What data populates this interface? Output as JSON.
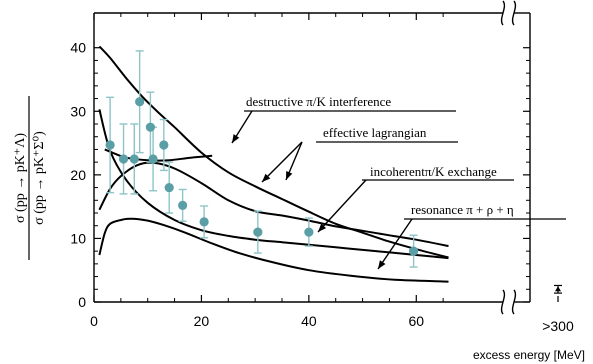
{
  "chart_data": {
    "type": "line",
    "xlabel": "excess energy  [MeV]",
    "ylabel_numerator": "σ (pp → pK⁺Λ)",
    "ylabel_denominator": "σ (pp → pK⁺Σ⁰)",
    "xlim": [
      0,
      70
    ],
    "ylim": [
      0,
      42
    ],
    "x_ticks": [
      "0",
      "20",
      "40",
      "60"
    ],
    "y_ticks": [
      "0",
      "10",
      "20",
      "30",
      "40"
    ],
    "x_break_label": ">300",
    "grid": false,
    "data_points": [
      {
        "x": 3.0,
        "y": 24.7,
        "yerr": 7.5
      },
      {
        "x": 5.5,
        "y": 22.5,
        "yerr": 5.5
      },
      {
        "x": 7.5,
        "y": 22.5,
        "yerr": 5.5
      },
      {
        "x": 8.5,
        "y": 31.5,
        "yerr": 8.0
      },
      {
        "x": 10.5,
        "y": 27.5,
        "yerr": 5.5
      },
      {
        "x": 11.0,
        "y": 22.5,
        "yerr": 5.0
      },
      {
        "x": 13.0,
        "y": 24.7,
        "yerr": 4.0
      },
      {
        "x": 14.0,
        "y": 18.0,
        "yerr": 4.0
      },
      {
        "x": 16.5,
        "y": 15.2,
        "yerr": 2.5
      },
      {
        "x": 20.5,
        "y": 12.6,
        "yerr": 2.5
      },
      {
        "x": 30.5,
        "y": 11.0,
        "yerr": 3.3
      },
      {
        "x": 40.0,
        "y": 11.0,
        "yerr": 2.2
      },
      {
        "x": 59.5,
        "y": 8.0,
        "yerr": 2.5
      }
    ],
    "break_point": {
      "y": 2.0,
      "yerr": 0.6
    },
    "curves": [
      {
        "x": [
          1,
          3,
          6,
          9,
          12,
          15,
          20,
          25,
          30,
          35,
          40,
          45,
          50,
          55,
          60,
          66
        ],
        "y": [
          40.2,
          38.4,
          35.2,
          32.3,
          29.8,
          27.5,
          23.5,
          20.4,
          18.2,
          16.2,
          14.2,
          12.3,
          10.9,
          9.5,
          8.3,
          7.0
        ]
      },
      {
        "x": [
          2,
          4,
          6,
          10,
          14,
          18,
          22
        ],
        "y": [
          24.0,
          23.3,
          22.7,
          22.3,
          22.3,
          22.7,
          23.0
        ]
      },
      {
        "x": [
          1,
          3,
          5,
          8,
          11,
          15,
          20,
          25,
          30,
          35,
          40,
          45,
          50,
          55,
          60,
          66
        ],
        "y": [
          14.5,
          17.8,
          19.8,
          21.5,
          21.9,
          21.0,
          18.7,
          16.0,
          14.3,
          13.6,
          12.8,
          11.9,
          11.2,
          10.5,
          9.8,
          8.8
        ]
      },
      {
        "x": [
          1,
          3,
          6,
          10,
          15,
          20,
          25,
          30,
          35,
          40,
          45,
          50,
          55,
          60,
          66
        ],
        "y": [
          30.3,
          23.8,
          19.2,
          15.6,
          12.9,
          11.3,
          10.4,
          9.8,
          9.4,
          9.0,
          8.6,
          8.2,
          7.8,
          7.4,
          6.9
        ]
      },
      {
        "x": [
          1,
          2,
          3,
          5,
          7,
          10,
          13,
          17,
          22,
          27,
          33,
          40,
          48,
          56,
          66
        ],
        "y": [
          7.4,
          10.8,
          12.3,
          12.9,
          13.1,
          12.8,
          12.1,
          10.9,
          9.2,
          7.7,
          6.3,
          5.0,
          4.1,
          3.5,
          3.2
        ]
      }
    ],
    "annotations": [
      "destructive π/K interference",
      "effective lagrangian",
      "incoherentπ/K exchange",
      "resonance π + ρ + η"
    ],
    "colors": {
      "curve": "#000000",
      "points": "#5a9ea6",
      "error_bars": "#8fc4c8"
    }
  }
}
